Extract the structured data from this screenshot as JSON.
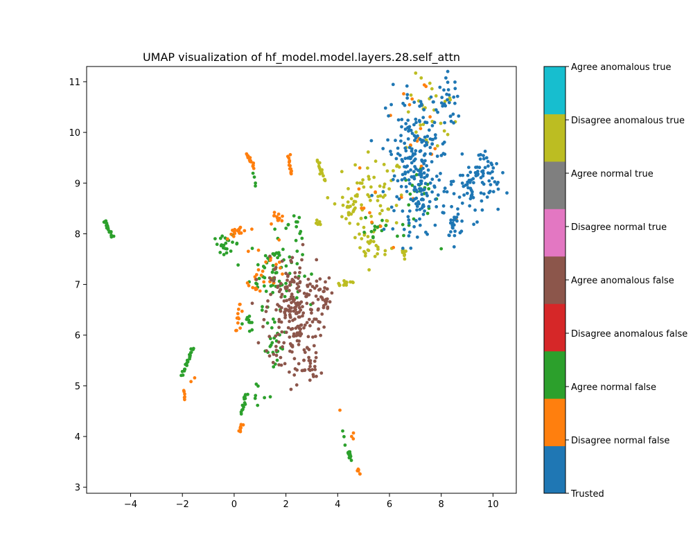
{
  "chart_data": {
    "type": "scatter",
    "title": "UMAP visualization of hf_model.model.layers.28.self_attn",
    "xlabel": "",
    "ylabel": "",
    "xlim": [
      -5.7,
      10.9
    ],
    "ylim": [
      2.88,
      11.3
    ],
    "xticks": [
      -4,
      -2,
      0,
      2,
      4,
      6,
      8,
      10
    ],
    "yticks": [
      3,
      4,
      5,
      6,
      7,
      8,
      9,
      10,
      11
    ],
    "grid": false,
    "colorbar": {
      "categories": [
        {
          "label": "Trusted",
          "color": "#1f77b4"
        },
        {
          "label": "Disagree normal false",
          "color": "#ff7f0e"
        },
        {
          "label": "Agree normal false",
          "color": "#2ca02c"
        },
        {
          "label": "Disagree anomalous false",
          "color": "#d62728"
        },
        {
          "label": "Agree anomalous false",
          "color": "#8c564b"
        },
        {
          "label": "Disagree normal true",
          "color": "#e377c2"
        },
        {
          "label": "Agree normal true",
          "color": "#7f7f7f"
        },
        {
          "label": "Disagree anomalous true",
          "color": "#bcbd22"
        },
        {
          "label": "Agree anomalous true",
          "color": "#17becf"
        }
      ]
    },
    "clusters": [
      {
        "series": "Trusted",
        "cx": 7.1,
        "cy": 9.6,
        "sx": 0.6,
        "sy": 0.6,
        "n": 170
      },
      {
        "series": "Trusted",
        "cx": 7.2,
        "cy": 8.7,
        "sx": 0.5,
        "sy": 0.35,
        "n": 70
      },
      {
        "series": "Trusted",
        "cx": 8.3,
        "cy": 10.6,
        "sx": 0.2,
        "sy": 0.25,
        "n": 25
      },
      {
        "series": "Trusted",
        "cx": 9.3,
        "cy": 8.9,
        "sx": 0.45,
        "sy": 0.3,
        "n": 70
      },
      {
        "series": "Trusted",
        "cx": 9.7,
        "cy": 9.35,
        "sx": 0.25,
        "sy": 0.2,
        "n": 20
      },
      {
        "series": "Trusted",
        "cx": 8.5,
        "cy": 8.1,
        "sx": 0.12,
        "sy": 0.15,
        "n": 10
      },
      {
        "series": "Agree anomalous false",
        "cx": 2.3,
        "cy": 6.5,
        "sx": 0.55,
        "sy": 0.55,
        "n": 220
      },
      {
        "series": "Agree anomalous false",
        "cx": 2.6,
        "cy": 5.35,
        "sx": 0.4,
        "sy": 0.15,
        "n": 30
      },
      {
        "series": "Agree anomalous false",
        "cx": 3.5,
        "cy": 6.7,
        "sx": 0.2,
        "sy": 0.2,
        "n": 20
      },
      {
        "series": "Agree normal false",
        "cx": 1.6,
        "cy": 7.3,
        "sx": 0.5,
        "sy": 0.35,
        "n": 70
      },
      {
        "series": "Agree normal false",
        "cx": 1.6,
        "cy": 5.8,
        "sx": 0.2,
        "sy": 0.3,
        "n": 25
      },
      {
        "series": "Agree normal false",
        "cx": -0.3,
        "cy": 7.8,
        "sx": 0.25,
        "sy": 0.08,
        "n": 22
      },
      {
        "series": "Agree normal false",
        "cx": 0.55,
        "cy": 6.25,
        "sx": 0.15,
        "sy": 0.1,
        "n": 10
      },
      {
        "series": "Agree normal false",
        "cx": 0.8,
        "cy": 4.8,
        "sx": 0.2,
        "sy": 0.1,
        "n": 6
      },
      {
        "series": "Agree normal false",
        "cx": 7.1,
        "cy": 8.6,
        "sx": 0.4,
        "sy": 0.35,
        "n": 25
      },
      {
        "series": "Agree normal false",
        "cx": 5.5,
        "cy": 8.15,
        "sx": 0.3,
        "sy": 0.2,
        "n": 15
      },
      {
        "series": "Agree normal false",
        "cx": 2.4,
        "cy": 8.2,
        "sx": 0.15,
        "sy": 0.3,
        "n": 10
      },
      {
        "series": "Disagree normal false",
        "cx": 0.2,
        "cy": 8.05,
        "sx": 0.2,
        "sy": 0.06,
        "n": 20
      },
      {
        "series": "Disagree normal false",
        "cx": 1.4,
        "cy": 7.4,
        "sx": 0.3,
        "sy": 0.25,
        "n": 15
      },
      {
        "series": "Disagree normal false",
        "cx": 0.85,
        "cy": 7.05,
        "sx": 0.15,
        "sy": 0.1,
        "n": 12
      },
      {
        "series": "Disagree normal false",
        "cx": 0.2,
        "cy": 6.4,
        "sx": 0.08,
        "sy": 0.15,
        "n": 12
      },
      {
        "series": "Disagree normal false",
        "cx": 1.65,
        "cy": 8.3,
        "sx": 0.15,
        "sy": 0.08,
        "n": 12
      },
      {
        "series": "Disagree normal false",
        "cx": 7.2,
        "cy": 10.3,
        "sx": 0.5,
        "sy": 0.4,
        "n": 15
      },
      {
        "series": "Disagree normal false",
        "cx": 5.2,
        "cy": 8.4,
        "sx": 0.4,
        "sy": 0.4,
        "n": 10
      },
      {
        "series": "Disagree anomalous true",
        "cx": 5.4,
        "cy": 8.6,
        "sx": 0.6,
        "sy": 0.5,
        "n": 70
      },
      {
        "series": "Disagree anomalous true",
        "cx": 5.2,
        "cy": 7.75,
        "sx": 0.3,
        "sy": 0.15,
        "n": 18
      },
      {
        "series": "Disagree anomalous true",
        "cx": 7.6,
        "cy": 10.3,
        "sx": 0.5,
        "sy": 0.4,
        "n": 30
      },
      {
        "series": "Disagree anomalous true",
        "cx": 4.3,
        "cy": 8.55,
        "sx": 0.3,
        "sy": 0.15,
        "n": 20
      },
      {
        "series": "Disagree anomalous true",
        "cx": 4.3,
        "cy": 7.03,
        "sx": 0.25,
        "sy": 0.04,
        "n": 12
      },
      {
        "series": "Disagree anomalous true",
        "cx": 6.6,
        "cy": 7.6,
        "sx": 0.1,
        "sy": 0.08,
        "n": 8
      },
      {
        "series": "Disagree anomalous true",
        "cx": 3.3,
        "cy": 8.25,
        "sx": 0.06,
        "sy": 0.05,
        "n": 6
      }
    ],
    "strands": [
      {
        "series": "Agree normal false",
        "x0": -5.0,
        "y0": 8.25,
        "x1": -4.7,
        "y1": 7.92,
        "n": 22
      },
      {
        "series": "Agree normal false",
        "x0": -1.6,
        "y0": 5.75,
        "x1": -2.0,
        "y1": 5.2,
        "n": 22
      },
      {
        "series": "Disagree normal false",
        "x0": -1.95,
        "y0": 4.9,
        "x1": -1.95,
        "y1": 4.72,
        "n": 6
      },
      {
        "series": "Disagree normal false",
        "x0": -1.5,
        "y0": 5.18,
        "x1": -1.65,
        "y1": 5.08,
        "n": 2
      },
      {
        "series": "Agree normal false",
        "x0": 0.25,
        "y0": 4.45,
        "x1": 0.5,
        "y1": 4.85,
        "n": 14
      },
      {
        "series": "Disagree normal false",
        "x0": 0.2,
        "y0": 4.08,
        "x1": 0.3,
        "y1": 4.25,
        "n": 8
      },
      {
        "series": "Disagree normal false",
        "x0": 0.5,
        "y0": 9.58,
        "x1": 0.75,
        "y1": 9.3,
        "n": 14
      },
      {
        "series": "Agree normal false",
        "x0": 0.75,
        "y0": 9.2,
        "x1": 0.85,
        "y1": 8.95,
        "n": 4
      },
      {
        "series": "Disagree normal false",
        "x0": 2.1,
        "y0": 9.55,
        "x1": 2.2,
        "y1": 9.15,
        "n": 14
      },
      {
        "series": "Disagree anomalous true",
        "x0": 3.2,
        "y0": 9.45,
        "x1": 3.5,
        "y1": 9.05,
        "n": 16
      },
      {
        "series": "Agree normal false",
        "x0": 4.4,
        "y0": 3.7,
        "x1": 4.5,
        "y1": 3.55,
        "n": 16
      },
      {
        "series": "Disagree normal false",
        "x0": 4.75,
        "y0": 3.35,
        "x1": 4.85,
        "y1": 3.25,
        "n": 6
      },
      {
        "series": "Disagree normal false",
        "x0": 4.6,
        "y0": 4.05,
        "x1": 4.6,
        "y1": 3.95,
        "n": 3
      },
      {
        "series": "Agree normal false",
        "x0": 4.2,
        "y0": 4.12,
        "x1": 4.35,
        "y1": 3.85,
        "n": 3
      },
      {
        "series": "Disagree normal false",
        "x0": 4.1,
        "y0": 4.5,
        "x1": 4.1,
        "y1": 4.45,
        "n": 1
      },
      {
        "series": "Trusted",
        "x0": 8.3,
        "y0": 7.95,
        "x1": 8.6,
        "y1": 8.4,
        "n": 10
      },
      {
        "series": "Disagree normal false",
        "x0": 8.6,
        "y0": 8.25,
        "x1": 8.6,
        "y1": 8.2,
        "n": 1
      }
    ]
  }
}
